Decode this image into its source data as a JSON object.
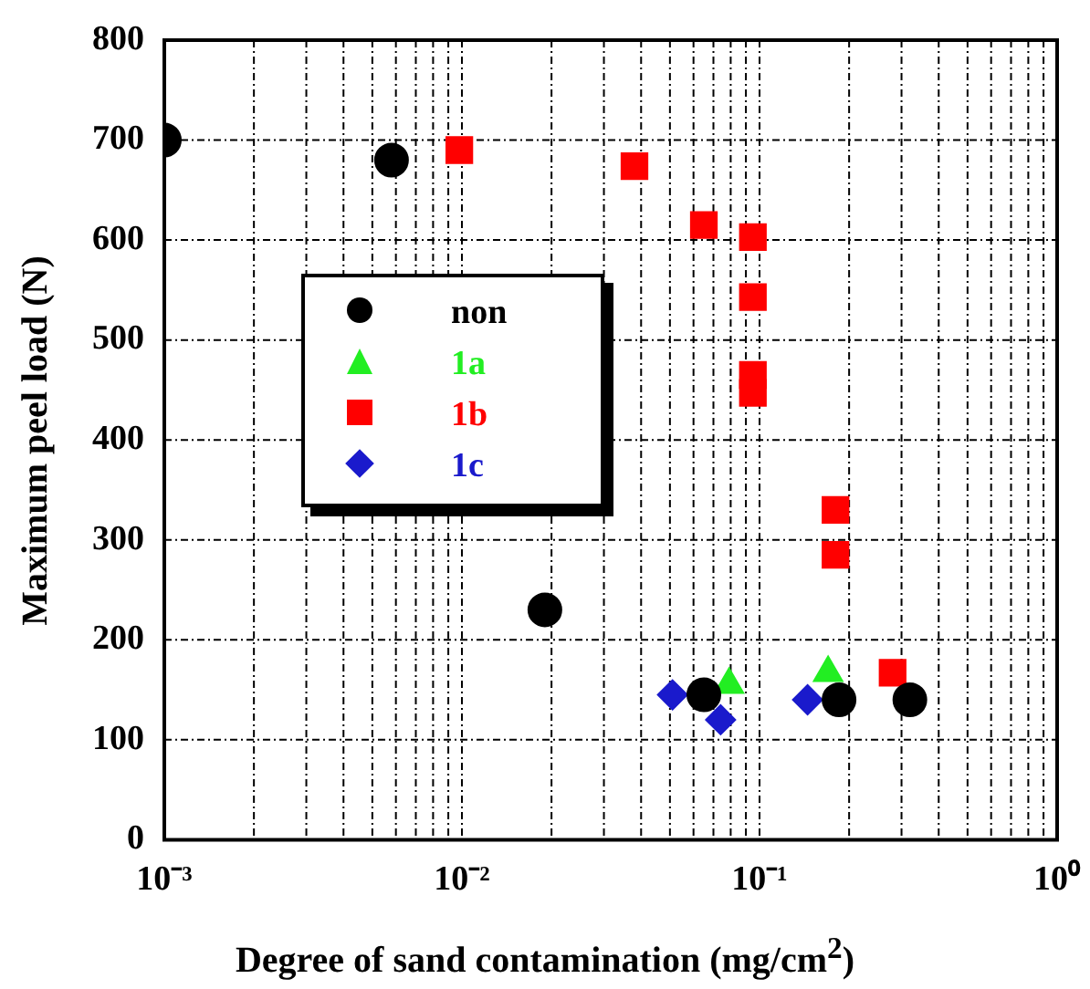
{
  "chart_data": {
    "type": "scatter",
    "xlabel": "Degree of sand contamination (mg/cm$^{2}$)",
    "ylabel": "Maximum  peel load (N)",
    "log": "x",
    "xlim": [
      0.001,
      1
    ],
    "xticks": [
      {
        "value": 0.001,
        "label": "10⁻³"
      },
      {
        "value": 0.01,
        "label": "10⁻²"
      },
      {
        "value": 0.1,
        "label": "10⁻¹"
      },
      {
        "value": 1,
        "label": "10⁰"
      }
    ],
    "ylim": [
      0,
      800
    ],
    "yticks": [
      0,
      100,
      200,
      300,
      400,
      500,
      600,
      700,
      800
    ],
    "grid": true,
    "legend": "center left",
    "series": [
      {
        "name": "non",
        "color": "#000000",
        "marker": "circle",
        "x": [
          0.001,
          0.0058,
          0.019,
          0.065,
          0.185,
          0.32
        ],
        "values": [
          700,
          680,
          230,
          145,
          140,
          140
        ]
      },
      {
        "name": "1a",
        "color": "#22ee22",
        "marker": "triangle",
        "x": [
          0.079,
          0.17
        ],
        "values": [
          155,
          167
        ]
      },
      {
        "name": "1b",
        "color": "#ff0000",
        "marker": "square",
        "x": [
          0.0098,
          0.038,
          0.065,
          0.095,
          0.095,
          0.095,
          0.095,
          0.18,
          0.18,
          0.28
        ],
        "values": [
          690,
          674,
          615,
          603,
          543,
          465,
          447,
          330,
          285,
          167
        ]
      },
      {
        "name": "1c",
        "color": "#1a1acc",
        "marker": "diamond",
        "x": [
          0.051,
          0.074,
          0.145
        ],
        "values": [
          145,
          120,
          140
        ]
      }
    ]
  }
}
